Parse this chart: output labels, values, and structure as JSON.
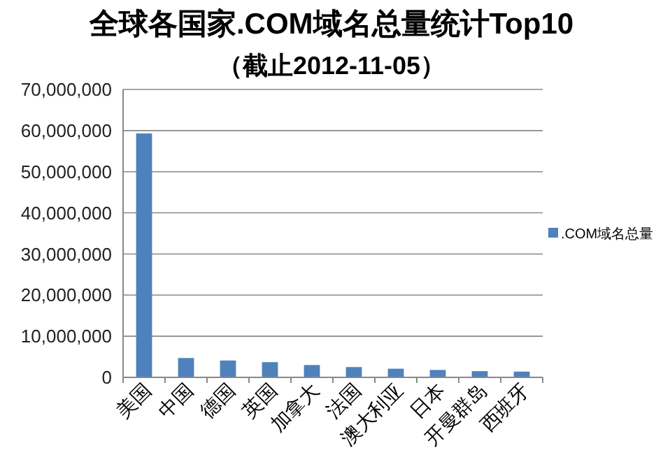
{
  "chart_data": {
    "type": "bar",
    "title": "全球各国家.COM域名总量统计Top10",
    "subtitle": "（截止2012-11-05）",
    "categories": [
      "美国",
      "中国",
      "德国",
      "英国",
      "加拿大",
      "法国",
      "澳大利亚",
      "日本",
      "开曼群岛",
      "西班牙"
    ],
    "series": [
      {
        "name": ".COM域名总量",
        "color": "#4f81bd",
        "values": [
          59300000,
          4700000,
          4100000,
          3700000,
          3000000,
          2500000,
          2100000,
          1800000,
          1500000,
          1400000
        ]
      }
    ],
    "ylim": [
      0,
      70000000
    ],
    "yticks": [
      {
        "value": 0,
        "label": "0"
      },
      {
        "value": 10000000,
        "label": "10,000,000"
      },
      {
        "value": 20000000,
        "label": "20,000,000"
      },
      {
        "value": 30000000,
        "label": "30,000,000"
      },
      {
        "value": 40000000,
        "label": "40,000,000"
      },
      {
        "value": 50000000,
        "label": "50,000,000"
      },
      {
        "value": 60000000,
        "label": "60,000,000"
      },
      {
        "value": 70000000,
        "label": "70,000,000"
      }
    ],
    "grid": "y",
    "legend": "right"
  }
}
